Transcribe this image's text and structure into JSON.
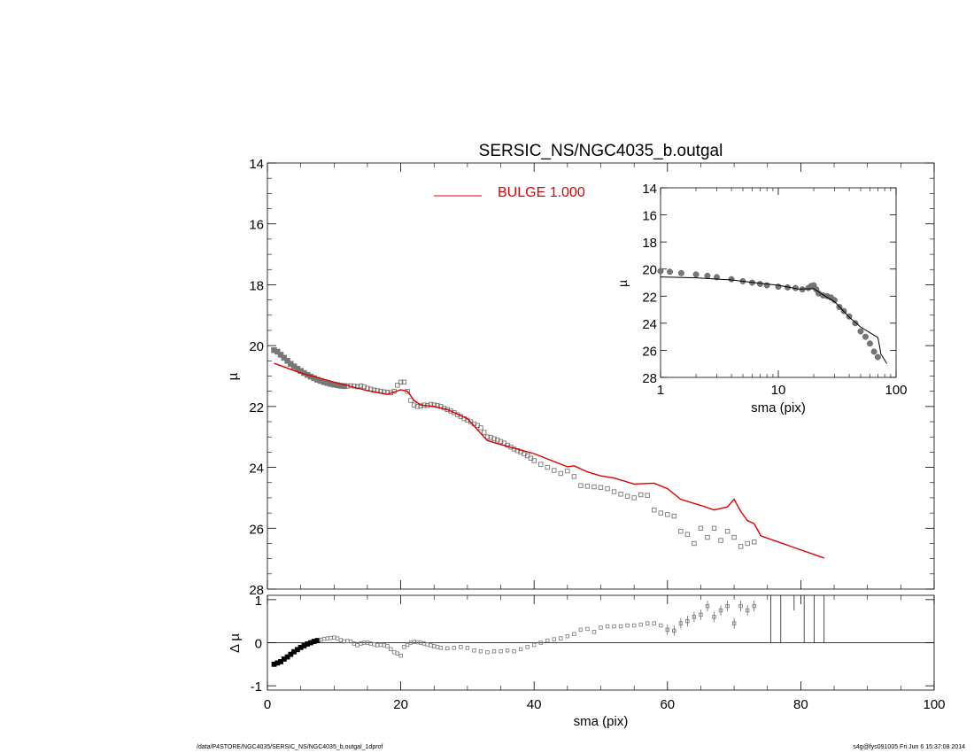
{
  "chart_data": [
    {
      "type": "scatter",
      "panel": "main",
      "title": "SERSIC_NS/NGC4035_b.outgal",
      "ylabel": "µ",
      "xlim": [
        0,
        100
      ],
      "ylim": [
        28,
        14
      ],
      "y_inverted": true,
      "yticks": [
        14,
        16,
        18,
        20,
        22,
        24,
        26,
        28
      ],
      "legend": {
        "label": "BULGE  1.000",
        "color": "#dd0000",
        "position": "top-center"
      },
      "series": [
        {
          "kind": "observed-profile-points",
          "color": "#777777",
          "x": [
            1.0,
            1.5,
            2.0,
            2.5,
            3.0,
            3.5,
            4.0,
            4.5,
            5.0,
            5.5,
            6.0,
            6.5,
            7.0,
            7.5,
            8.0,
            8.5,
            9.0,
            9.5,
            10.0,
            10.5,
            11.0,
            11.5,
            12.0,
            12.5,
            13.0,
            13.5,
            14.0,
            14.5,
            15.0,
            15.5,
            16.0,
            16.5,
            17.0,
            17.5,
            18.0,
            18.5,
            19.0,
            19.5,
            20.0,
            20.5,
            21.0,
            21.5,
            22.0,
            22.5,
            23.0,
            23.5,
            24.0,
            24.5,
            25.0,
            25.5,
            26.0,
            26.5,
            27.0,
            27.5,
            28.0,
            28.5,
            29.0,
            29.5,
            30.0,
            30.5,
            31.0,
            31.5,
            32.0,
            32.5,
            33.0,
            33.5,
            34.0,
            34.5,
            35.0,
            35.5,
            36.0,
            36.5,
            37.0,
            37.5,
            38.0,
            38.5,
            39.0,
            39.5,
            40.0,
            41.0,
            42.0,
            43.0,
            44.0,
            45.0,
            46.0,
            47.0,
            48.0,
            49.0,
            50.0,
            51.0,
            52.0,
            53.0,
            54.0,
            55.0,
            56.0,
            57.0,
            58.0,
            59.0,
            60.0,
            61.0,
            62.0,
            63.0,
            64.0,
            65.0,
            66.0,
            67.0,
            68.0,
            69.0,
            70.0,
            71.0,
            72.0,
            73.0
          ],
          "y": [
            20.15,
            20.2,
            20.3,
            20.4,
            20.5,
            20.6,
            20.68,
            20.76,
            20.83,
            20.9,
            20.96,
            21.02,
            21.07,
            21.12,
            21.16,
            21.2,
            21.23,
            21.26,
            21.28,
            21.3,
            21.32,
            21.33,
            21.33,
            21.32,
            21.33,
            21.35,
            21.32,
            21.35,
            21.4,
            21.43,
            21.46,
            21.48,
            21.5,
            21.52,
            21.53,
            21.55,
            21.5,
            21.3,
            21.2,
            21.2,
            21.5,
            21.8,
            21.95,
            22.0,
            21.98,
            21.95,
            21.97,
            21.93,
            21.95,
            21.97,
            22.0,
            22.05,
            22.1,
            22.15,
            22.2,
            22.27,
            22.33,
            22.4,
            22.45,
            22.5,
            22.57,
            22.62,
            22.7,
            22.85,
            23.0,
            23.02,
            23.06,
            23.1,
            23.15,
            23.2,
            23.27,
            23.33,
            23.4,
            23.45,
            23.5,
            23.56,
            23.62,
            23.7,
            23.78,
            23.9,
            24.0,
            24.1,
            24.2,
            24.12,
            24.3,
            24.6,
            24.62,
            24.64,
            24.66,
            24.7,
            24.8,
            24.88,
            24.95,
            25.0,
            24.9,
            24.92,
            25.4,
            25.5,
            25.55,
            25.6,
            26.1,
            26.2,
            26.5,
            26.0,
            26.3,
            26.0,
            26.4,
            26.1,
            26.3,
            26.6,
            26.5,
            26.45
          ]
        },
        {
          "kind": "bulge-model",
          "color": "#dd0000",
          "x": [
            1,
            5,
            10,
            15,
            18,
            20,
            21,
            22,
            23,
            25,
            27,
            30,
            33,
            35,
            40,
            45,
            46,
            48,
            50,
            52,
            55,
            58,
            60,
            62,
            65,
            67,
            69,
            70,
            71,
            72,
            73,
            74,
            83.5
          ],
          "y": [
            20.58,
            20.9,
            21.2,
            21.48,
            21.6,
            21.45,
            21.5,
            21.8,
            21.95,
            22.0,
            22.1,
            22.4,
            23.12,
            23.25,
            23.55,
            23.98,
            23.95,
            24.15,
            24.28,
            24.35,
            24.55,
            24.52,
            24.7,
            25.05,
            25.25,
            25.4,
            25.3,
            25.05,
            25.45,
            25.75,
            25.85,
            26.25,
            26.98
          ]
        }
      ]
    },
    {
      "type": "scatter",
      "panel": "inset",
      "xlabel": "sma (pix)",
      "ylabel": "µ",
      "x_scale": "log",
      "xlim": [
        1,
        100
      ],
      "ylim": [
        28,
        14
      ],
      "y_inverted": true,
      "xticks": [
        1,
        10,
        100
      ],
      "yticks": [
        14,
        16,
        18,
        20,
        22,
        24,
        26,
        28
      ],
      "series": [
        {
          "kind": "observed-profile-points",
          "color": "#777777",
          "x": [
            1.0,
            1.2,
            1.5,
            2.0,
            2.5,
            3.0,
            4.0,
            5.0,
            6.0,
            7.0,
            8.0,
            10.0,
            12.0,
            14.0,
            16.0,
            18.0,
            19.0,
            20.0,
            21.0,
            22.0,
            24.0,
            26.0,
            28.0,
            30.0,
            33.0,
            36.0,
            40.0,
            45.0,
            50.0,
            55.0,
            60.0,
            65.0,
            70.0
          ],
          "y": [
            20.15,
            20.2,
            20.3,
            20.4,
            20.5,
            20.6,
            20.75,
            20.9,
            21.0,
            21.1,
            21.2,
            21.3,
            21.35,
            21.4,
            21.5,
            21.4,
            21.25,
            21.2,
            21.5,
            21.8,
            21.95,
            22.0,
            22.1,
            22.3,
            22.8,
            23.1,
            23.5,
            24.0,
            24.6,
            25.0,
            25.5,
            26.1,
            26.5
          ]
        },
        {
          "kind": "bulge-model",
          "color": "#000000",
          "x": [
            1,
            2,
            4,
            7,
            10,
            15,
            20,
            25,
            30,
            40,
            50,
            60,
            70,
            73,
            74,
            83.5
          ],
          "y": [
            20.58,
            20.65,
            20.8,
            21.05,
            21.2,
            21.48,
            21.45,
            22.0,
            22.4,
            23.55,
            24.28,
            24.7,
            25.05,
            25.85,
            26.25,
            26.98
          ]
        }
      ]
    },
    {
      "type": "scatter",
      "panel": "residual",
      "xlabel": "sma (pix)",
      "ylabel": "Δ µ",
      "xlim": [
        0,
        100
      ],
      "ylim": [
        -1.1,
        1.1
      ],
      "xticks": [
        0,
        20,
        40,
        60,
        80,
        100
      ],
      "yticks": [
        -1,
        0,
        1
      ],
      "reference_line": 0,
      "series": [
        {
          "kind": "residual-points",
          "color": "#777777",
          "x": [
            1.0,
            1.5,
            2.0,
            2.5,
            3.0,
            3.5,
            4.0,
            4.5,
            5.0,
            5.5,
            6.0,
            6.5,
            7.0,
            7.5,
            8.0,
            8.5,
            9.0,
            9.5,
            10.0,
            10.5,
            11.0,
            11.5,
            12.0,
            12.5,
            13.0,
            13.5,
            14.0,
            14.5,
            15.0,
            15.5,
            16.0,
            16.5,
            17.0,
            17.5,
            18.0,
            18.5,
            19.0,
            19.5,
            20.0,
            20.5,
            21.0,
            21.5,
            22.0,
            22.5,
            23.0,
            23.5,
            24.0,
            24.5,
            25.0,
            25.5,
            26.0,
            27.0,
            28.0,
            29.0,
            30.0,
            31.0,
            32.0,
            33.0,
            34.0,
            35.0,
            36.0,
            37.0,
            38.0,
            39.0,
            40.0,
            41.0,
            42.0,
            43.0,
            44.0,
            45.0,
            46.0,
            47.0,
            48.0,
            49.0,
            50.0,
            51.0,
            52.0,
            53.0,
            54.0,
            55.0,
            56.0,
            57.0,
            58.0,
            59.0,
            60.0,
            61.0,
            62.0,
            63.0,
            64.0,
            65.0,
            66.0,
            67.0,
            68.0,
            69.0,
            70.0,
            71.0,
            72.0,
            73.0
          ],
          "y": [
            -0.5,
            -0.47,
            -0.44,
            -0.38,
            -0.33,
            -0.27,
            -0.21,
            -0.16,
            -0.11,
            -0.07,
            -0.03,
            0.0,
            0.03,
            0.05,
            0.07,
            0.09,
            0.1,
            0.11,
            0.12,
            0.1,
            0.06,
            0.03,
            0.04,
            0.03,
            -0.02,
            -0.06,
            -0.02,
            0.0,
            0.0,
            -0.02,
            -0.04,
            -0.06,
            -0.05,
            -0.06,
            -0.08,
            -0.15,
            -0.22,
            -0.25,
            -0.3,
            -0.1,
            -0.05,
            0.0,
            0.02,
            0.01,
            0.0,
            -0.02,
            -0.04,
            -0.06,
            -0.08,
            -0.1,
            -0.12,
            -0.13,
            -0.12,
            -0.1,
            -0.12,
            -0.18,
            -0.2,
            -0.22,
            -0.2,
            -0.2,
            -0.18,
            -0.2,
            -0.15,
            -0.1,
            -0.05,
            0.0,
            0.05,
            0.08,
            0.1,
            0.15,
            0.2,
            0.3,
            0.32,
            0.25,
            0.35,
            0.38,
            0.38,
            0.38,
            0.4,
            0.4,
            0.42,
            0.45,
            0.45,
            0.4,
            0.3,
            0.28,
            0.45,
            0.5,
            0.6,
            0.65,
            0.85,
            0.6,
            0.75,
            0.85,
            0.45,
            0.85,
            0.75,
            0.85
          ]
        }
      ],
      "vertical_lines_x": [
        75.5,
        77.0,
        80.5,
        82.0,
        83.5
      ]
    }
  ],
  "footer": {
    "left": "/data/P4STORE/NGC4035/SERSIC_NS/NGC4035_b.outgal_1dprof",
    "right": "s4g@fys091005  Fri Jun  6 15:37:08 2014"
  }
}
